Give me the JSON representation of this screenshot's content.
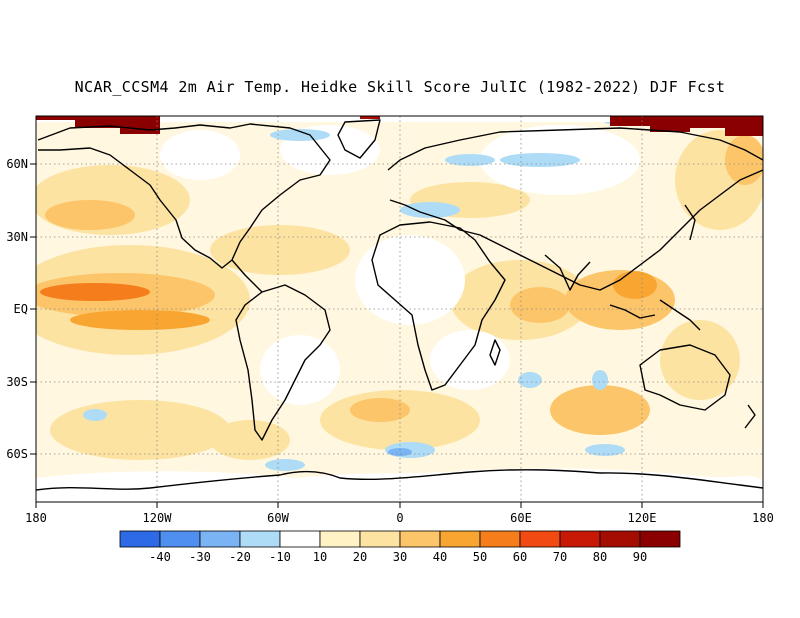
{
  "title": "NCAR_CCSM4 2m Air Temp. Heidke Skill Score JulIC (1982-2022) DJF Fcst",
  "map": {
    "lon_labels": [
      "180",
      "120W",
      "60W",
      "0",
      "60E",
      "120E",
      "180"
    ],
    "lat_labels": [
      "60N",
      "30N",
      "EQ",
      "30S",
      "60S"
    ],
    "lon_range": [
      -180,
      180
    ],
    "lat_range": [
      -90,
      80
    ],
    "gridlines": "dotted",
    "land_outline_color": "#000000",
    "dominant_field_color": "#fde3a2"
  },
  "colorbar": {
    "labels": [
      "-40",
      "-30",
      "-20",
      "-10",
      "10",
      "20",
      "30",
      "40",
      "50",
      "60",
      "70",
      "80",
      "90"
    ],
    "colors": [
      "#2d6be6",
      "#4f8ff0",
      "#7ab4f5",
      "#aedcf7",
      "#ffffff",
      "#fff3c6",
      "#fde3a2",
      "#fcc56a",
      "#f9a531",
      "#f67d1b",
      "#f14a12",
      "#c81907",
      "#a40d02",
      "#8a0000"
    ]
  }
}
